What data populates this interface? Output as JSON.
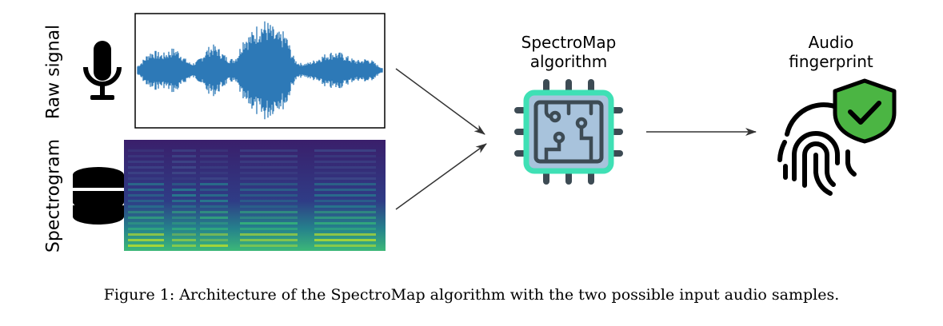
{
  "inputs": {
    "raw_signal_label": "Raw signal",
    "spectrogram_label": "Spectrogram"
  },
  "algorithm": {
    "label_line1": "SpectroMap",
    "label_line2": "algorithm"
  },
  "output": {
    "label_line1": "Audio",
    "label_line2": "fingerprint"
  },
  "caption": "Figure 1: Architecture of the SpectroMap algorithm with the two possible input audio samples.",
  "icons": {
    "microphone": "microphone-icon",
    "database": "database-icon",
    "chip": "chip-icon",
    "fingerprint": "fingerprint-icon",
    "shield": "shield-check-icon"
  },
  "colors": {
    "waveform": "#2d79b7",
    "chip_body": "#a8c3dc",
    "chip_outline": "#3fe0b5",
    "chip_pins": "#3d4b54",
    "shield": "#4bb543",
    "spectrogram_bg": "#3b1d6e"
  }
}
